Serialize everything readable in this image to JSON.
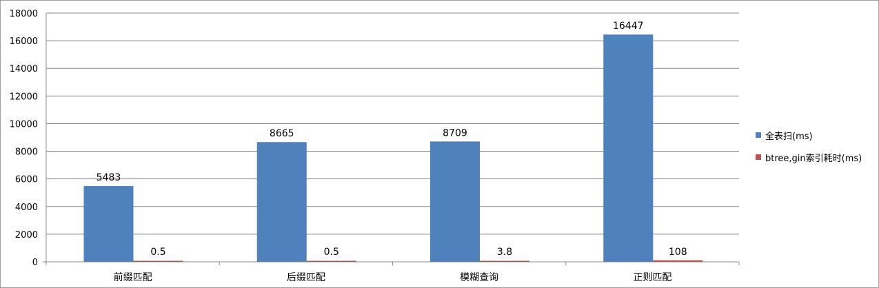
{
  "chart_data": {
    "type": "bar",
    "title": "",
    "xlabel": "",
    "ylabel": "",
    "categories": [
      "前缀匹配",
      "后缀匹配",
      "模糊查询",
      "正则匹配"
    ],
    "series": [
      {
        "name": "全表扫(ms)",
        "color": "#4f81bd",
        "values": [
          5483,
          8665,
          8709,
          16447
        ],
        "labels": [
          "5483",
          "8665",
          "8709",
          "16447"
        ]
      },
      {
        "name": "btree,gin索引耗时(ms)",
        "color": "#c0504d",
        "values": [
          0.5,
          0.5,
          3.8,
          108
        ],
        "labels": [
          "0.5",
          "0.5",
          "3.8",
          "108"
        ]
      }
    ],
    "ylim": [
      0,
      18000
    ],
    "yticks": [
      "0",
      "2000",
      "4000",
      "6000",
      "8000",
      "10000",
      "12000",
      "14000",
      "16000",
      "18000"
    ],
    "grid": true,
    "legend_position": "right"
  }
}
